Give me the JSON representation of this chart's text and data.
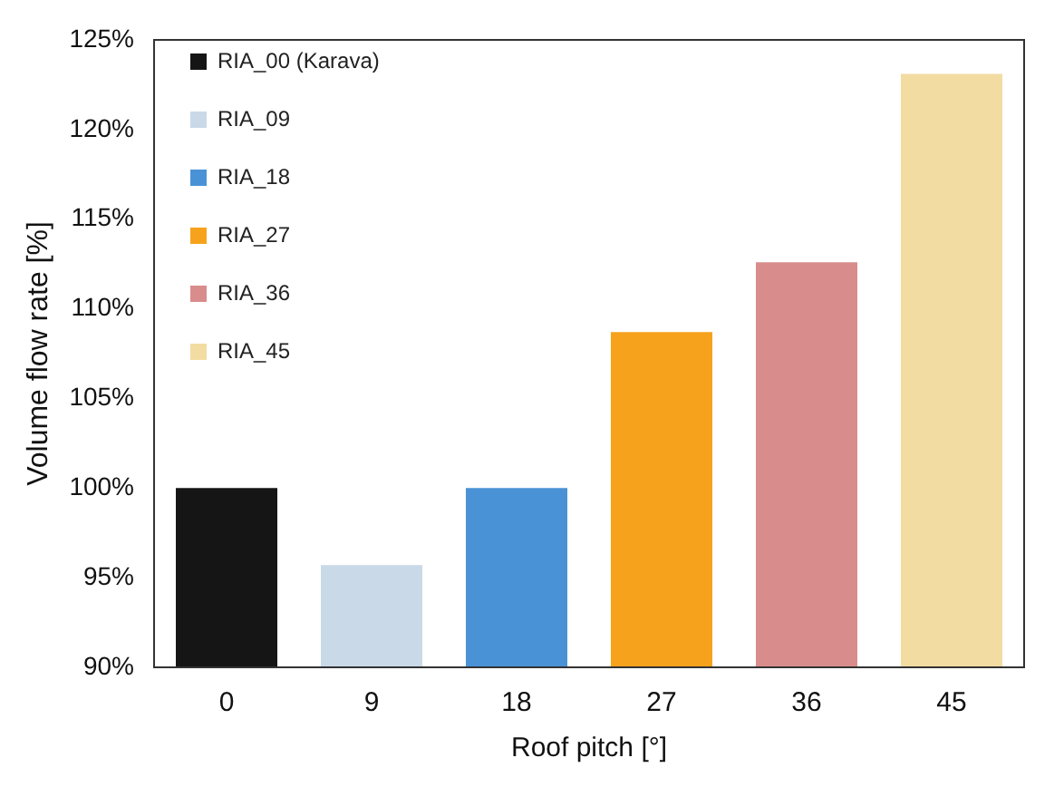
{
  "chart_data": {
    "type": "bar",
    "xlabel": "Roof pitch [°]",
    "ylabel": "Volume flow rate [%]",
    "categories": [
      "0",
      "9",
      "18",
      "27",
      "36",
      "45"
    ],
    "series": [
      {
        "name": "RIA_00 (Karava)",
        "color": "#151515",
        "values": [
          100,
          null,
          null,
          null,
          null,
          null
        ]
      },
      {
        "name": "RIA_09",
        "color": "#c9d9e8",
        "values": [
          null,
          95.7,
          null,
          null,
          null,
          null
        ]
      },
      {
        "name": "RIA_18",
        "color": "#4a92d6",
        "values": [
          null,
          null,
          100,
          null,
          null,
          null
        ]
      },
      {
        "name": "RIA_27",
        "color": "#f7a21c",
        "values": [
          null,
          null,
          null,
          108.7,
          null,
          null
        ]
      },
      {
        "name": "RIA_36",
        "color": "#d98c8c",
        "values": [
          null,
          null,
          null,
          null,
          112.6,
          null
        ]
      },
      {
        "name": "RIA_45",
        "color": "#f2dca2",
        "values": [
          null,
          null,
          null,
          null,
          null,
          123.1
        ]
      }
    ],
    "ylim": [
      90,
      125
    ],
    "yticks": [
      {
        "value": 90,
        "label": "90%"
      },
      {
        "value": 95,
        "label": "95%"
      },
      {
        "value": 100,
        "label": "100%"
      },
      {
        "value": 105,
        "label": "105%"
      },
      {
        "value": 110,
        "label": "110%"
      },
      {
        "value": 115,
        "label": "115%"
      },
      {
        "value": 120,
        "label": "120%"
      },
      {
        "value": 125,
        "label": "125%"
      }
    ],
    "grid": false,
    "legend": "top left"
  }
}
